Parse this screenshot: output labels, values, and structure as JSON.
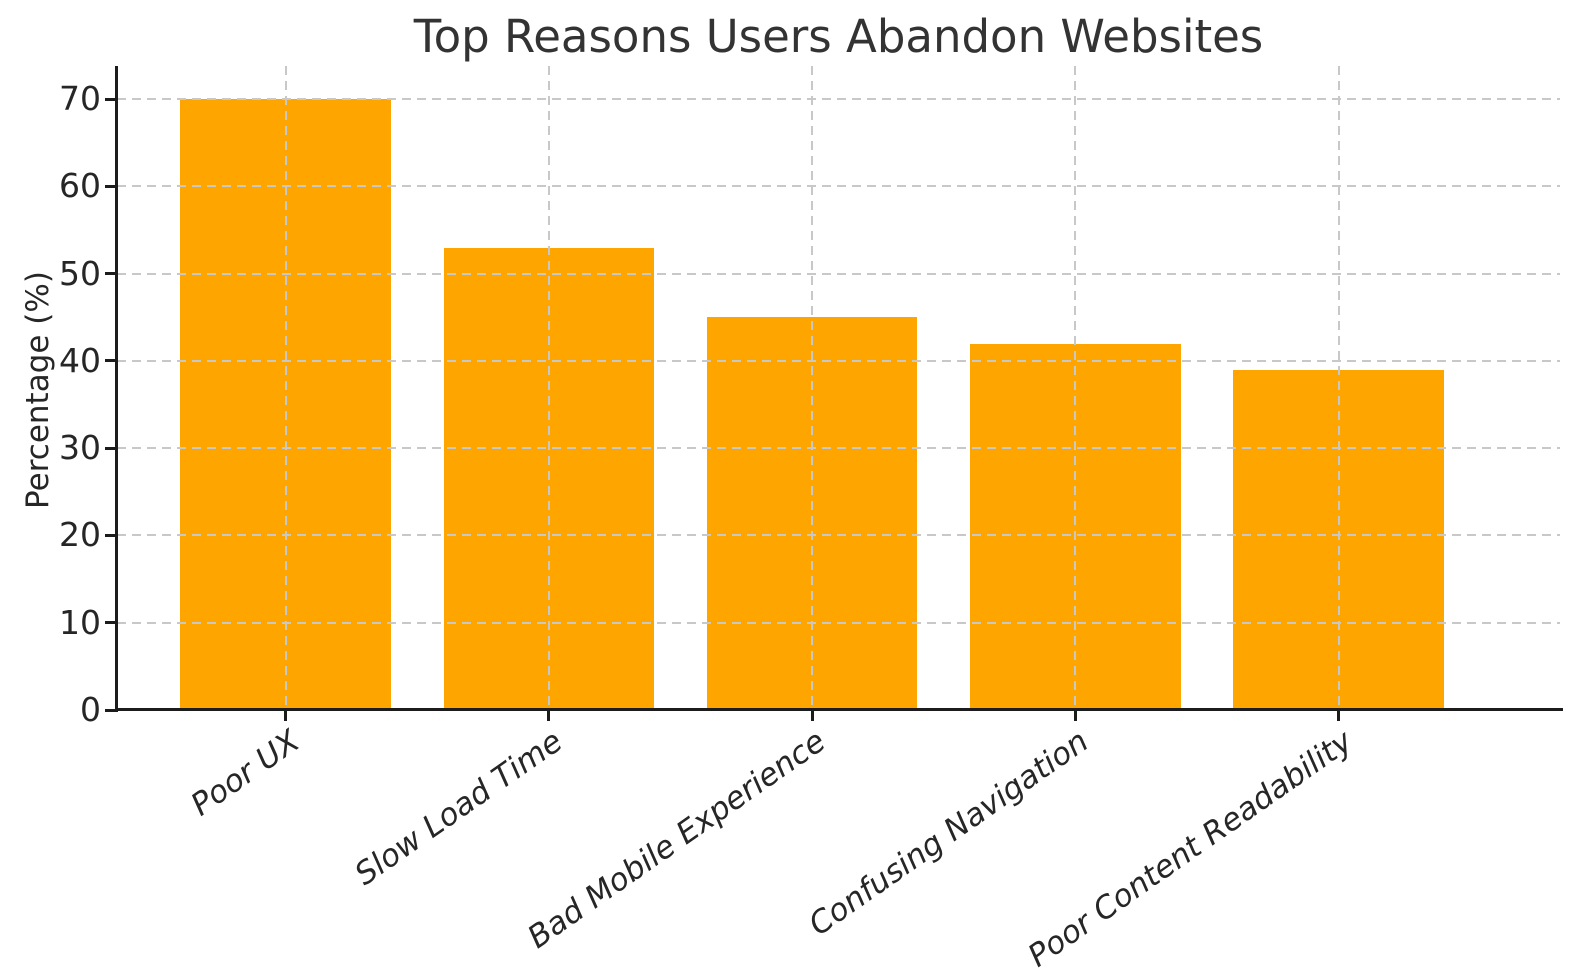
{
  "chart_data": {
    "type": "bar",
    "title": "Top Reasons Users Abandon Websites",
    "xlabel": "",
    "ylabel": "Percentage (%)",
    "categories": [
      "Poor UX",
      "Slow Load Time",
      "Bad Mobile Experience",
      "Confusing Navigation",
      "Poor Content Readability"
    ],
    "values": [
      70,
      53,
      45,
      42,
      39
    ],
    "yticks": [
      0,
      10,
      20,
      30,
      40,
      50,
      60,
      70
    ],
    "ylim": [
      0,
      73.8
    ],
    "bar_color": "#FFA500",
    "background_color": "#FFFFFF",
    "grid": "dashed",
    "grid_color": "#C8C8C8",
    "spine_color": "#1C1C1C",
    "title_color": "#333333",
    "tick_label_color": "#262626",
    "x_tick_rotation_deg": 35,
    "legend": "none"
  }
}
